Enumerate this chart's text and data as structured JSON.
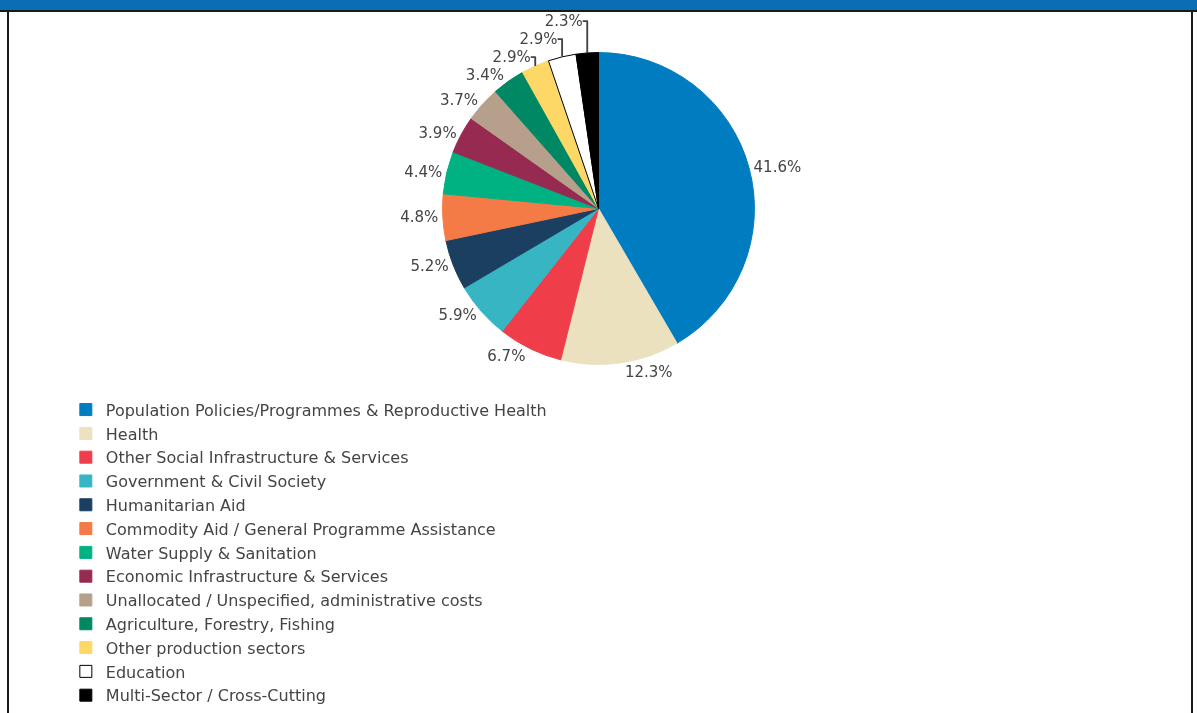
{
  "chart_data": {
    "type": "pie",
    "categories": [
      "Population Policies/Programmes & Reproductive Health",
      "Health",
      "Other Social Infrastructure & Services",
      "Government & Civil Society",
      "Humanitarian Aid",
      "Commodity Aid / General Programme Assistance",
      "Water Supply & Sanitation",
      "Economic Infrastructure & Services",
      "Unallocated / Unspecified, administrative costs",
      "Agriculture, Forestry, Fishing",
      "Other production sectors",
      "Education",
      "Multi-Sector / Cross-Cutting"
    ],
    "values": [
      41.6,
      12.3,
      6.7,
      5.9,
      5.2,
      4.8,
      4.4,
      3.9,
      3.7,
      3.4,
      2.9,
      2.9,
      2.3
    ],
    "value_labels": [
      "41.6%",
      "12.3%",
      "6.7%",
      "5.9%",
      "5.2%",
      "4.8%",
      "4.4%",
      "3.9%",
      "3.7%",
      "3.4%",
      "2.9%",
      "2.9%",
      "2.3%"
    ],
    "colors": [
      "#007dc0",
      "#ebe1bf",
      "#ef3e4a",
      "#37b5c3",
      "#1b3f60",
      "#f47a46",
      "#00b282",
      "#972a51",
      "#b7a08b",
      "#008764",
      "#fed867",
      "#ffffff",
      "#000000"
    ],
    "legend": "bottom"
  }
}
